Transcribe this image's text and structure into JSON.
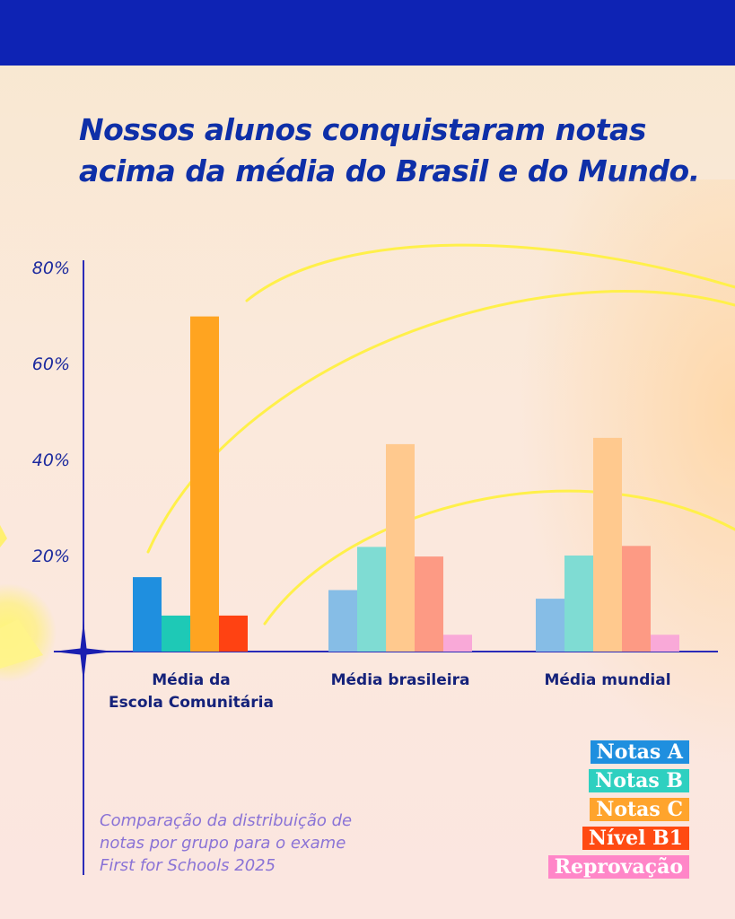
{
  "title": {
    "part1": "Nossos alunos conquistaram ",
    "part1_bold": "notas",
    "part2_bold": "acima da média",
    "part2": " do Brasil e do Mundo."
  },
  "caption": {
    "line1": "Comparação da distribuição de",
    "line2": "notas por grupo para o exame",
    "line3": "First for Schools 2025"
  },
  "colors": {
    "header": "#0e23b4",
    "title": "#0e2fa8",
    "axis": "#2b2bb8",
    "tick_label": "#1c2a9e",
    "category_label": "#15227a",
    "caption": "#8a73d6"
  },
  "legend": [
    {
      "label": "Notas A",
      "color": "#1f8fdf"
    },
    {
      "label": "Notas B",
      "color": "#2ed0c0"
    },
    {
      "label": "Notas C",
      "color": "#ffa42c"
    },
    {
      "label": "Nível  B1",
      "color": "#ff4a12"
    },
    {
      "label": "Reprovação",
      "color": "#ff86c8"
    }
  ],
  "chart_data": {
    "type": "bar",
    "title": "Nossos alunos conquistaram notas acima da média do Brasil e do Mundo.",
    "xlabel": "",
    "ylabel": "",
    "ylim": [
      0,
      80
    ],
    "yticks": [
      20,
      40,
      60,
      80
    ],
    "ytick_labels": [
      "20%",
      "40%",
      "60%",
      "80%"
    ],
    "categories": [
      [
        "Média da",
        "Escola Comunitária"
      ],
      [
        "Média brasileira"
      ],
      [
        "Média mundial"
      ]
    ],
    "series": [
      {
        "name": "Notas A",
        "values": [
          15.5,
          12.8,
          11
        ]
      },
      {
        "name": "Notas B",
        "values": [
          7.5,
          21.8,
          20
        ]
      },
      {
        "name": "Notas C",
        "values": [
          69.8,
          43.2,
          44.5
        ]
      },
      {
        "name": "Nível  B1",
        "values": [
          7.5,
          19.8,
          22
        ]
      },
      {
        "name": "Reprovação",
        "values": [
          0,
          3.5,
          3.5
        ]
      }
    ],
    "group_colors": [
      [
        "#1f8fdf",
        "#1ec9b6",
        "#ffa420",
        "#ff4212",
        "#ff86c8"
      ],
      [
        "#86bde6",
        "#7fdcd3",
        "#ffc98e",
        "#fd9a84",
        "#f9a9d8"
      ],
      [
        "#86bde6",
        "#7fdcd3",
        "#ffc98e",
        "#fd9a84",
        "#f9a9d8"
      ]
    ],
    "legend_position": "bottom-right"
  }
}
